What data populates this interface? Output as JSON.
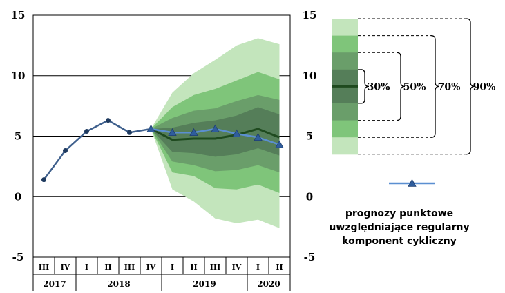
{
  "chart_data": {
    "type": "line",
    "yticks": [
      "15",
      "10",
      "5",
      "0",
      "-5"
    ],
    "ylim": [
      -5,
      15
    ],
    "grid": true,
    "categories": [
      "III",
      "IV",
      "I",
      "II",
      "III",
      "IV",
      "I",
      "II",
      "III",
      "IV",
      "I",
      "II"
    ],
    "years": [
      {
        "label": "2017",
        "from": 0,
        "to": 2
      },
      {
        "label": "2018",
        "from": 2,
        "to": 6
      },
      {
        "label": "2019",
        "from": 6,
        "to": 10
      },
      {
        "label": "2020",
        "from": 10,
        "to": 12
      }
    ],
    "history": {
      "x": [
        0,
        1,
        2,
        3,
        4,
        5
      ],
      "values": [
        1.4,
        3.8,
        5.4,
        6.3,
        5.3,
        5.6
      ]
    },
    "forecast_central": {
      "x": [
        5,
        6,
        7,
        8,
        9,
        10,
        11
      ],
      "values": [
        5.6,
        4.7,
        4.8,
        4.8,
        5.1,
        5.6,
        4.9
      ]
    },
    "point_forecast": {
      "x": [
        5,
        6,
        7,
        8,
        9,
        10,
        11
      ],
      "values": [
        5.6,
        5.3,
        5.3,
        5.6,
        5.2,
        4.9,
        4.3
      ]
    },
    "fan_bands": [
      {
        "label": "90%",
        "color": "#c3e5bc",
        "upper": [
          5.6,
          8.6,
          10.2,
          11.3,
          12.5,
          13.1,
          12.6
        ],
        "lower": [
          5.6,
          0.6,
          -0.4,
          -1.8,
          -2.2,
          -1.9,
          -2.6
        ]
      },
      {
        "label": "70%",
        "color": "#7fc57a",
        "upper": [
          5.6,
          7.4,
          8.4,
          8.9,
          9.6,
          10.3,
          9.7
        ],
        "lower": [
          5.6,
          2.0,
          1.7,
          0.7,
          0.6,
          1.0,
          0.3
        ]
      },
      {
        "label": "50%",
        "color": "#6a9e6a",
        "upper": [
          5.6,
          6.5,
          7.1,
          7.3,
          7.9,
          8.4,
          8.0
        ],
        "lower": [
          5.6,
          2.9,
          2.6,
          2.1,
          2.2,
          2.6,
          2.0
        ]
      },
      {
        "label": "30%",
        "color": "#557e59",
        "upper": [
          5.6,
          5.7,
          6.1,
          6.3,
          6.7,
          7.4,
          6.8
        ],
        "lower": [
          5.6,
          3.7,
          3.6,
          3.3,
          3.5,
          4.0,
          3.4
        ]
      }
    ],
    "band_labels": [
      "30%",
      "50%",
      "70%",
      "90%"
    ],
    "legend_label": "prognozy punktowe uwzględniające regularny komponent cykliczny",
    "colors": {
      "history_line": "#3e5f8c",
      "point_line": "#5b8fd1",
      "central_line": "#1f4a1f",
      "grid": "#000000"
    }
  }
}
